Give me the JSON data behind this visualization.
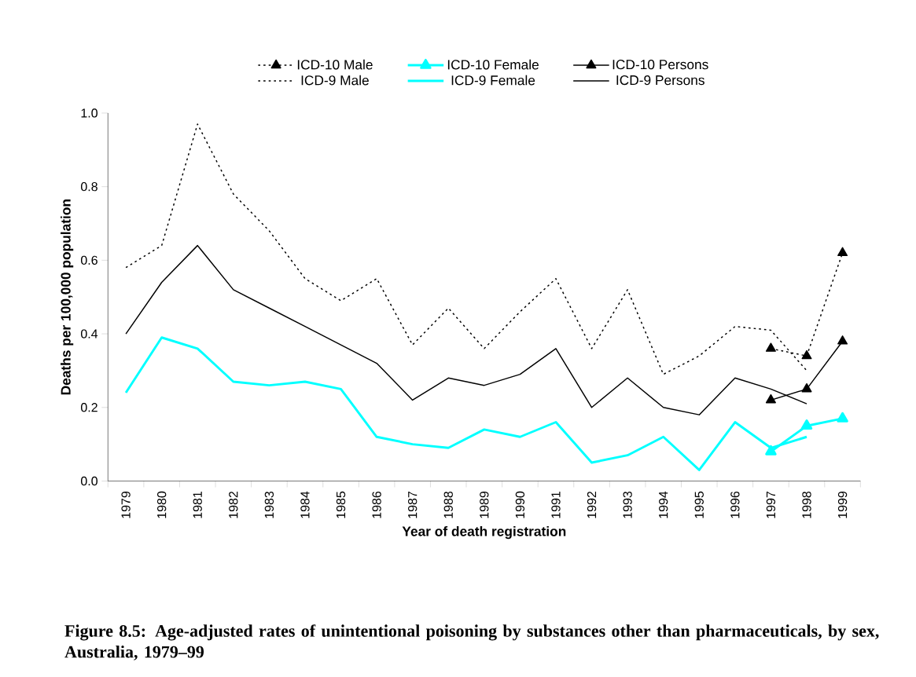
{
  "chart_data": {
    "type": "line",
    "xlabel": "Year of death registration",
    "ylabel": "Deaths per 100,000 population",
    "categories": [
      "1979",
      "1980",
      "1981",
      "1982",
      "1983",
      "1984",
      "1985",
      "1986",
      "1987",
      "1988",
      "1989",
      "1990",
      "1991",
      "1992",
      "1993",
      "1994",
      "1995",
      "1996",
      "1997",
      "1998",
      "1999"
    ],
    "ylim": [
      0,
      1
    ],
    "yticks": [
      {
        "value": 0,
        "label": "0.0"
      },
      {
        "value": 0.2,
        "label": "0.2"
      },
      {
        "value": 0.4,
        "label": "0.4"
      },
      {
        "value": 0.6,
        "label": "0.6"
      },
      {
        "value": 0.8,
        "label": "0.8"
      },
      {
        "value": 1,
        "label": "1.0"
      }
    ],
    "legend": "top",
    "series": [
      {
        "name": "ICD-10 Male",
        "color": "#000000",
        "line_style": "dotted",
        "marker": "triangle",
        "values": [
          null,
          null,
          null,
          null,
          null,
          null,
          null,
          null,
          null,
          null,
          null,
          null,
          null,
          null,
          null,
          null,
          null,
          null,
          0.36,
          0.34,
          0.62
        ]
      },
      {
        "name": "ICD-10 Female",
        "color": "#00ffff",
        "line_style": "solid",
        "marker": "triangle",
        "values": [
          null,
          null,
          null,
          null,
          null,
          null,
          null,
          null,
          null,
          null,
          null,
          null,
          null,
          null,
          null,
          null,
          null,
          null,
          0.08,
          0.15,
          0.17
        ]
      },
      {
        "name": "ICD-10 Persons",
        "color": "#000000",
        "line_style": "solid",
        "marker": "triangle",
        "values": [
          null,
          null,
          null,
          null,
          null,
          null,
          null,
          null,
          null,
          null,
          null,
          null,
          null,
          null,
          null,
          null,
          null,
          null,
          0.22,
          0.25,
          0.38
        ]
      },
      {
        "name": "ICD-9 Male",
        "color": "#000000",
        "line_style": "dotted",
        "marker": "none",
        "values": [
          0.58,
          0.64,
          0.97,
          0.78,
          0.68,
          0.55,
          0.49,
          0.55,
          0.37,
          0.47,
          0.36,
          0.46,
          0.55,
          0.36,
          0.52,
          0.29,
          0.34,
          0.42,
          0.41,
          0.3,
          null
        ]
      },
      {
        "name": "ICD-9 Female",
        "color": "#00ffff",
        "line_style": "solid",
        "marker": "none",
        "values": [
          0.24,
          0.39,
          0.36,
          0.27,
          0.26,
          0.27,
          0.25,
          0.12,
          0.1,
          0.09,
          0.14,
          0.12,
          0.16,
          0.05,
          0.07,
          0.12,
          0.03,
          0.16,
          0.09,
          0.12,
          null
        ]
      },
      {
        "name": "ICD-9 Persons",
        "color": "#000000",
        "line_style": "solid",
        "marker": "none",
        "values": [
          0.4,
          0.54,
          0.64,
          0.52,
          0.47,
          0.42,
          0.37,
          0.32,
          0.22,
          0.28,
          0.26,
          0.29,
          0.36,
          0.2,
          0.28,
          0.2,
          0.18,
          0.28,
          0.25,
          0.21,
          null
        ]
      }
    ],
    "annotations": [
      "**Figure 8.5: Age-adjusted rates of unintentional poisoning by substances other than pharmaceuticals, by sex, Australia, 1979–99**"
    ]
  }
}
